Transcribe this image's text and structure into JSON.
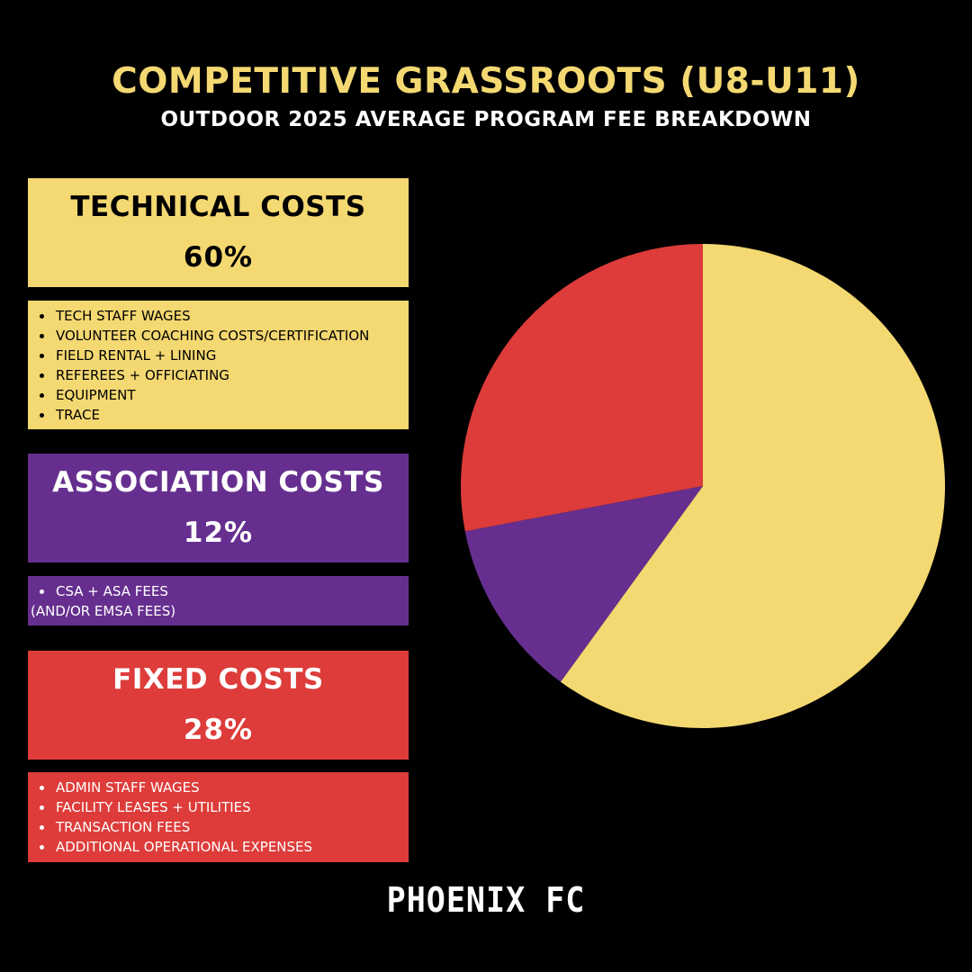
{
  "header": {
    "title": "COMPETITIVE GRASSROOTS (U8-U11)",
    "subtitle": "OUTDOOR 2025 AVERAGE PROGRAM FEE BREAKDOWN"
  },
  "categories": {
    "technical": {
      "label": "TECHNICAL COSTS",
      "percent_text": "60%",
      "items": [
        "TECH STAFF WAGES",
        "VOLUNTEER COACHING COSTS/CERTIFICATION",
        "FIELD RENTAL + LINING",
        "REFEREES + OFFICIATING",
        "EQUIPMENT",
        "TRACE"
      ]
    },
    "association": {
      "label": "ASSOCIATION COSTS",
      "percent_text": "12%",
      "items": [
        "CSA + ASA FEES"
      ],
      "continuation": "(AND/OR EMSA FEES)"
    },
    "fixed": {
      "label": "FIXED COSTS",
      "percent_text": "28%",
      "items": [
        "ADMIN STAFF WAGES",
        "FACILITY LEASES + UTILITIES",
        "TRANSACTION FEES",
        "ADDITIONAL OPERATIONAL EXPENSES"
      ]
    }
  },
  "colors": {
    "background": "#000000",
    "technical": "#F4D871",
    "association": "#662F8F",
    "fixed": "#DD3C3A",
    "title": "#F4D871"
  },
  "chart_data": {
    "type": "pie",
    "title": "",
    "start_angle": "12 o'clock",
    "direction": "clockwise",
    "slices": [
      {
        "label": "TECHNICAL COSTS",
        "value": 60,
        "color": "#F4D871"
      },
      {
        "label": "ASSOCIATION COSTS",
        "value": 12,
        "color": "#662F8F"
      },
      {
        "label": "FIXED COSTS",
        "value": 28,
        "color": "#DD3C3A"
      }
    ]
  },
  "footer": {
    "logo_text": "PHOENIX FC"
  }
}
